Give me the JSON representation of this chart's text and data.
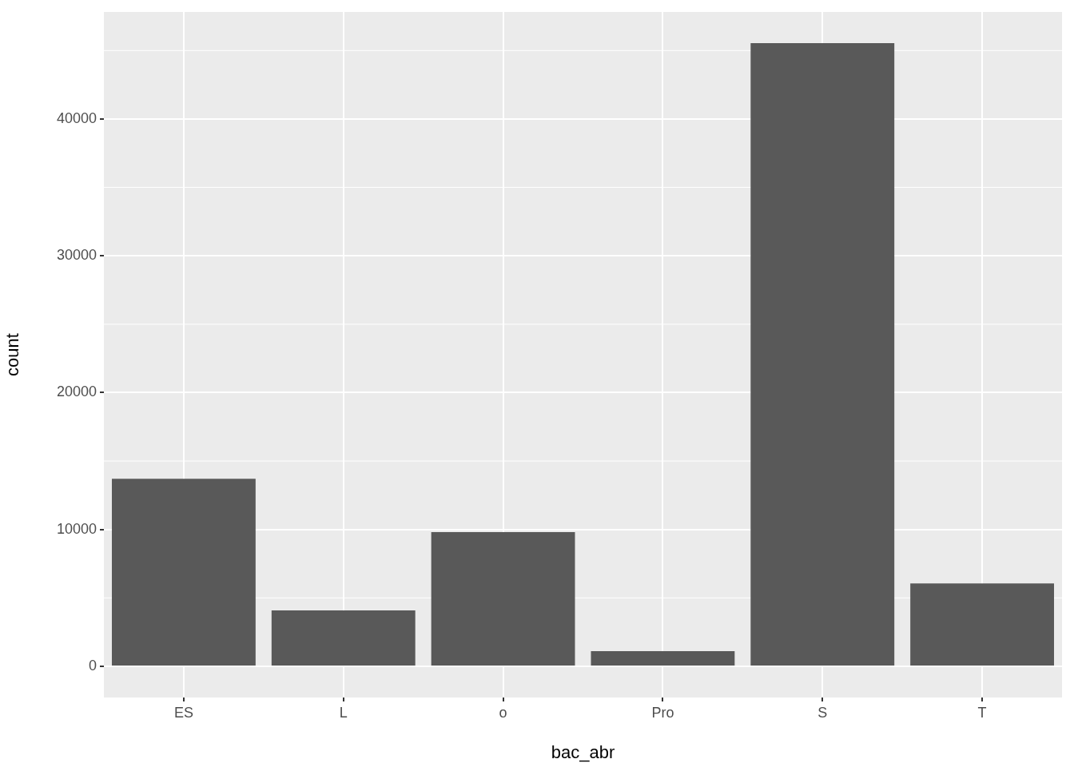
{
  "chart_data": {
    "type": "bar",
    "xlabel": "bac_abr",
    "ylabel": "count",
    "categories": [
      "ES",
      "L",
      "o",
      "Pro",
      "S",
      "T"
    ],
    "values": [
      13700,
      4080,
      9800,
      1110,
      45540,
      6060
    ],
    "color": "#595959",
    "ylim": [
      -2280,
      47820
    ],
    "yticks": [
      0,
      10000,
      20000,
      30000,
      40000
    ],
    "grid": true,
    "legend": false
  }
}
